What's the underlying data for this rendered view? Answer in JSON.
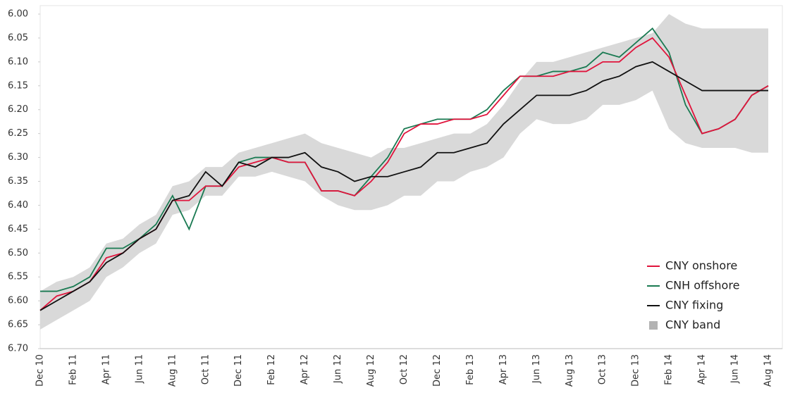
{
  "chart_data": {
    "type": "line",
    "categories": [
      "Dec 10",
      null,
      "Feb 11",
      null,
      "Apr 11",
      null,
      "Jun 11",
      null,
      "Aug 11",
      null,
      "Oct 11",
      null,
      "Dec 11",
      null,
      "Feb 12",
      null,
      "Apr 12",
      null,
      "Jun 12",
      null,
      "Aug 12",
      null,
      "Oct 12",
      null,
      "Dec 12",
      null,
      "Feb 13",
      null,
      "Apr 13",
      null,
      "Jun 13",
      null,
      "Aug 13",
      null,
      "Oct 13",
      null,
      "Dec 13",
      null,
      "Feb 14",
      null,
      "Apr 14",
      null,
      "Jun 14",
      null,
      "Aug 14"
    ],
    "series": [
      {
        "name": "CNY onshore",
        "color": "#e0143c",
        "values": [
          6.62,
          6.59,
          6.58,
          6.56,
          6.51,
          6.5,
          6.47,
          6.45,
          6.39,
          6.39,
          6.36,
          6.36,
          6.32,
          6.31,
          6.3,
          6.31,
          6.31,
          6.37,
          6.37,
          6.38,
          6.35,
          6.31,
          6.25,
          6.23,
          6.23,
          6.22,
          6.22,
          6.21,
          6.17,
          6.13,
          6.13,
          6.13,
          6.12,
          6.12,
          6.1,
          6.1,
          6.07,
          6.05,
          6.09,
          6.17,
          6.25,
          6.24,
          6.22,
          6.17,
          6.15
        ]
      },
      {
        "name": "CNH offshore",
        "color": "#1a7a52",
        "values": [
          6.58,
          6.58,
          6.57,
          6.55,
          6.49,
          6.49,
          6.47,
          6.44,
          6.38,
          6.45,
          6.36,
          6.36,
          6.31,
          6.3,
          6.3,
          6.31,
          6.31,
          6.37,
          6.37,
          6.38,
          6.34,
          6.3,
          6.24,
          6.23,
          6.22,
          6.22,
          6.22,
          6.2,
          6.16,
          6.13,
          6.13,
          6.12,
          6.12,
          6.11,
          6.08,
          6.09,
          6.06,
          6.03,
          6.08,
          6.19,
          6.25,
          6.24,
          6.22,
          6.17,
          6.15
        ]
      },
      {
        "name": "CNY fixing",
        "color": "#111111",
        "values": [
          6.62,
          6.6,
          6.58,
          6.56,
          6.52,
          6.5,
          6.47,
          6.45,
          6.39,
          6.38,
          6.33,
          6.36,
          6.31,
          6.32,
          6.3,
          6.3,
          6.29,
          6.32,
          6.33,
          6.35,
          6.34,
          6.34,
          6.33,
          6.32,
          6.29,
          6.29,
          6.28,
          6.27,
          6.23,
          6.2,
          6.17,
          6.17,
          6.17,
          6.16,
          6.14,
          6.13,
          6.11,
          6.1,
          6.12,
          6.14,
          6.16,
          6.16,
          6.16,
          6.16,
          6.16
        ]
      },
      {
        "name": "CNY band",
        "color": "#d9d9d9",
        "values": [
          [
            6.58,
            6.66
          ],
          [
            6.56,
            6.64
          ],
          [
            6.55,
            6.62
          ],
          [
            6.53,
            6.6
          ],
          [
            6.48,
            6.55
          ],
          [
            6.47,
            6.53
          ],
          [
            6.44,
            6.5
          ],
          [
            6.42,
            6.48
          ],
          [
            6.36,
            6.42
          ],
          [
            6.35,
            6.41
          ],
          [
            6.32,
            6.38
          ],
          [
            6.32,
            6.38
          ],
          [
            6.29,
            6.34
          ],
          [
            6.28,
            6.34
          ],
          [
            6.27,
            6.33
          ],
          [
            6.26,
            6.34
          ],
          [
            6.25,
            6.35
          ],
          [
            6.27,
            6.38
          ],
          [
            6.28,
            6.4
          ],
          [
            6.29,
            6.41
          ],
          [
            6.3,
            6.41
          ],
          [
            6.28,
            6.4
          ],
          [
            6.28,
            6.38
          ],
          [
            6.27,
            6.38
          ],
          [
            6.26,
            6.35
          ],
          [
            6.25,
            6.35
          ],
          [
            6.25,
            6.33
          ],
          [
            6.23,
            6.32
          ],
          [
            6.19,
            6.3
          ],
          [
            6.14,
            6.25
          ],
          [
            6.1,
            6.22
          ],
          [
            6.1,
            6.23
          ],
          [
            6.09,
            6.23
          ],
          [
            6.08,
            6.22
          ],
          [
            6.07,
            6.19
          ],
          [
            6.06,
            6.19
          ],
          [
            6.05,
            6.18
          ],
          [
            6.04,
            6.16
          ],
          [
            6.0,
            6.24
          ],
          [
            6.02,
            6.27
          ],
          [
            6.03,
            6.28
          ],
          [
            6.03,
            6.28
          ],
          [
            6.03,
            6.28
          ],
          [
            6.03,
            6.29
          ],
          [
            6.03,
            6.29
          ]
        ]
      }
    ],
    "ylim": [
      6.7,
      6.0
    ],
    "yticks": [
      {
        "value": 6.7,
        "label": "6.70"
      },
      {
        "value": 6.65,
        "label": "6.65"
      },
      {
        "value": 6.6,
        "label": "6.60"
      },
      {
        "value": 6.55,
        "label": "6.55"
      },
      {
        "value": 6.5,
        "label": "6.50"
      },
      {
        "value": 6.45,
        "label": "6.45"
      },
      {
        "value": 6.4,
        "label": "6.40"
      },
      {
        "value": 6.35,
        "label": "6.35"
      },
      {
        "value": 6.3,
        "label": "6.30"
      },
      {
        "value": 6.25,
        "label": "6.25"
      },
      {
        "value": 6.2,
        "label": "6.20"
      },
      {
        "value": 6.15,
        "label": "6.15"
      },
      {
        "value": 6.1,
        "label": "6.10"
      },
      {
        "value": 6.05,
        "label": "6.05"
      },
      {
        "value": 6.0,
        "label": "6.00"
      }
    ],
    "legend": "lower right",
    "grid": false
  }
}
